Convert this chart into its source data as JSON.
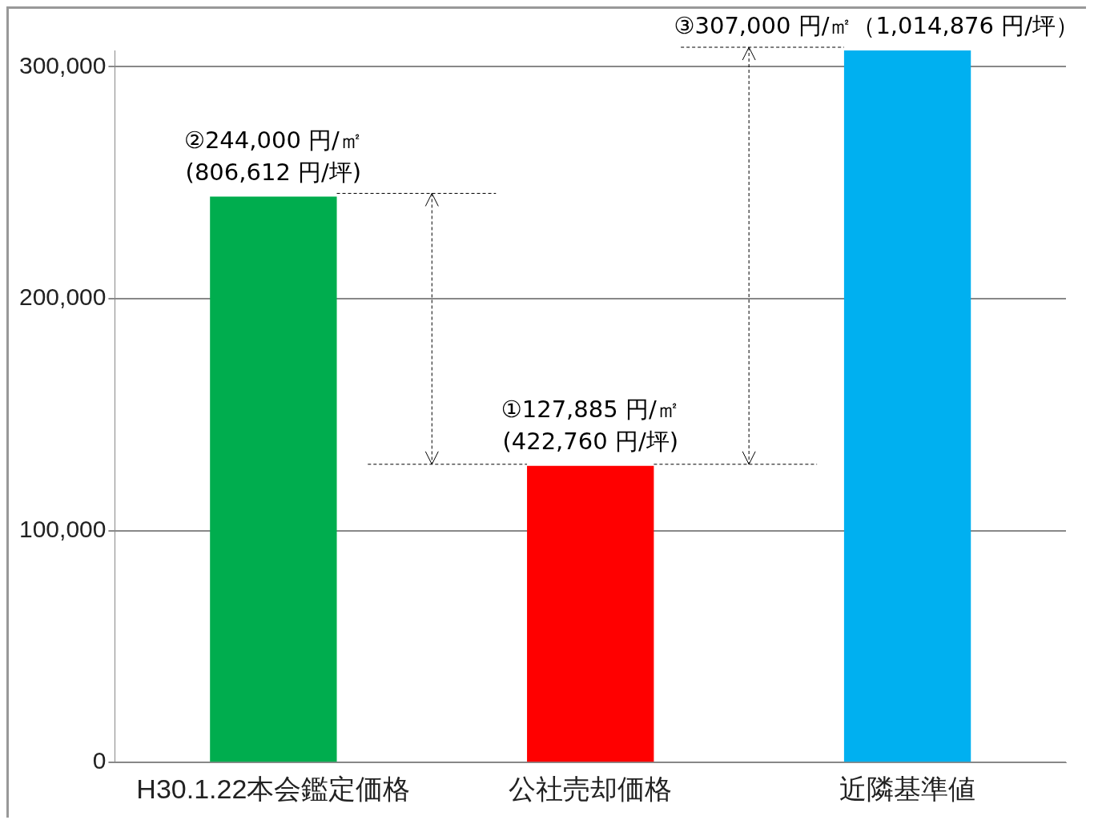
{
  "chart_data": {
    "type": "bar",
    "categories": [
      "H30.1.22本会鑑定価格",
      "公社売却価格",
      "近隣基準値"
    ],
    "values": [
      244000,
      127885,
      307000
    ],
    "colors": [
      "#00ad4e",
      "#ff0000",
      "#00b0f0"
    ],
    "value_labels": [
      "②244,000 円/㎡\n(806,612 円/坪)",
      "①127,885 円/㎡\n(422,760 円/坪)",
      "③307,000 円/㎡（1,014,876 円/坪）"
    ],
    "ylim": [
      0,
      307000
    ],
    "yticks": [
      0,
      {
        "value": 100000,
        "label": "100,000"
      },
      {
        "value": 200000,
        "label": "200,000"
      },
      {
        "value": 300000,
        "label": "300,000"
      }
    ],
    "grid": "y",
    "legend": false
  }
}
